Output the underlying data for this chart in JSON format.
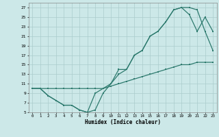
{
  "title": "",
  "xlabel": "Humidex (Indice chaleur)",
  "bg_color": "#cce8e8",
  "grid_color": "#aacccc",
  "line_color": "#2d7a6e",
  "xlim": [
    -0.5,
    23.5
  ],
  "ylim": [
    5,
    28
  ],
  "yticks": [
    5,
    7,
    9,
    11,
    13,
    15,
    17,
    19,
    21,
    23,
    25,
    27
  ],
  "xticks": [
    0,
    1,
    2,
    3,
    4,
    5,
    6,
    7,
    8,
    9,
    10,
    11,
    12,
    13,
    14,
    15,
    16,
    17,
    18,
    19,
    20,
    21,
    22,
    23
  ],
  "line1_x": [
    0,
    1,
    2,
    3,
    4,
    5,
    6,
    7,
    8,
    9,
    10,
    11,
    12,
    13,
    14,
    15,
    16,
    17,
    18,
    19,
    20,
    21,
    22,
    23
  ],
  "line1_y": [
    10,
    10,
    8.5,
    7.5,
    6.5,
    6.5,
    5.5,
    5,
    5.5,
    9,
    11,
    14,
    14,
    17,
    18,
    21,
    22,
    24,
    26.5,
    27,
    27,
    26.5,
    22,
    18
  ],
  "line2_x": [
    0,
    1,
    2,
    3,
    4,
    5,
    6,
    7,
    8,
    9,
    10,
    11,
    12,
    13,
    14,
    15,
    16,
    17,
    18,
    19,
    20,
    21,
    22,
    23
  ],
  "line2_y": [
    10,
    10,
    10,
    10,
    10,
    10,
    10,
    10,
    10,
    10,
    10.5,
    11,
    11.5,
    12,
    12.5,
    13,
    13.5,
    14,
    14.5,
    15,
    15,
    15.5,
    15.5,
    15.5
  ],
  "line3_x": [
    0,
    1,
    2,
    3,
    4,
    5,
    6,
    7,
    8,
    9,
    10,
    11,
    12,
    13,
    14,
    15,
    16,
    17,
    18,
    19,
    20,
    21,
    22,
    23
  ],
  "line3_y": [
    10,
    10,
    8.5,
    7.5,
    6.5,
    6.5,
    5.5,
    5,
    9,
    10,
    11,
    13,
    14,
    17,
    18,
    21,
    22,
    24,
    26.5,
    27,
    25.5,
    22,
    25,
    22
  ]
}
